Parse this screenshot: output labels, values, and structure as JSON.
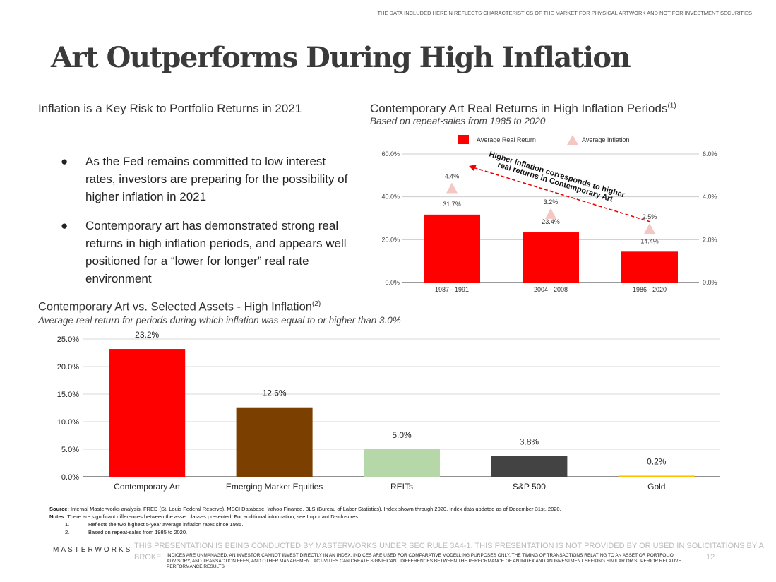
{
  "disclaimer_top": "THE DATA INCLUDED HEREIN REFLECTS CHARACTERISTICS OF THE MARKET FOR PHYSICAL ARTWORK AND NOT FOR INVESTMENT SECURITIES",
  "title": "Art Outperforms During High Inflation",
  "left": {
    "heading": "Inflation is a Key Risk to Portfolio Returns in 2021",
    "bullets": [
      "As the Fed remains committed to low interest rates, investors are preparing for the possibility of higher inflation in 2021",
      "Contemporary art has demonstrated strong real returns in high inflation periods, and appears well positioned for a “lower for longer” real rate environment"
    ]
  },
  "colors": {
    "art_red": "#ff0000",
    "emerging": "#7b3f00",
    "reits": "#b6d7a8",
    "sp500": "#434343",
    "gold": "#ffc000",
    "triangle": "#f4c7c3"
  },
  "chart_data": [
    {
      "type": "bar",
      "title": "Contemporary Art Real Returns in High Inflation Periods",
      "title_sup": "(1)",
      "subtitle": "Based on repeat-sales from 1985 to 2020",
      "categories": [
        "1987 - 1991",
        "2004 - 2008",
        "1986 - 2020"
      ],
      "series": [
        {
          "name": "Average Real Return",
          "values": [
            31.7,
            23.4,
            14.4
          ],
          "labels": [
            "31.7%",
            "23.4%",
            "14.4%"
          ],
          "axis": "left"
        },
        {
          "name": "Average Inflation",
          "type": "scatter",
          "marker": "triangle",
          "values": [
            4.4,
            3.2,
            2.5
          ],
          "labels": [
            "4.4%",
            "3.2%",
            "2.5%"
          ],
          "axis": "right"
        }
      ],
      "ylim": [
        0,
        60
      ],
      "yticks": [
        "0.0%",
        "20.0%",
        "40.0%",
        "60.0%"
      ],
      "y2lim": [
        0,
        6
      ],
      "y2ticks": [
        "0.0%",
        "2.0%",
        "4.0%",
        "6.0%"
      ],
      "legend": "top",
      "grid": true,
      "annotation": [
        "Higher inflation corresponds to higher",
        "real returns in Contemporary Art"
      ]
    },
    {
      "type": "bar",
      "title": "Contemporary Art vs. Selected Assets - High Inflation",
      "title_sup": "(2)",
      "subtitle": "Average real return for periods during which inflation was equal to or higher than 3.0%",
      "categories": [
        "Contemporary Art",
        "Emerging Market Equities",
        "REITs",
        "S&P 500",
        "Gold"
      ],
      "values": [
        23.2,
        12.6,
        5.0,
        3.8,
        0.2
      ],
      "labels": [
        "23.2%",
        "12.6%",
        "5.0%",
        "3.8%",
        "0.2%"
      ],
      "ylim": [
        0,
        25
      ],
      "yticks": [
        "0.0%",
        "5.0%",
        "10.0%",
        "15.0%",
        "20.0%",
        "25.0%"
      ],
      "grid": true
    }
  ],
  "notes": {
    "source_label": "Source:",
    "source": " Internal Masterworks analysis. FRED (St. Louis Federal Reserve). MSCI Database. Yahoo Finance. BLS (Bureau of Labor Statistics). Index shown through 2020. Index data updated as of December 31st, 2020.",
    "notes_label": "Notes:",
    "notes": " There are significant differences between the asset classes presented. For additional information, see Important Disclosures.",
    "items": [
      {
        "n": "1.",
        "t": "Reflects the two highest 5-year average inflation rates since 1985."
      },
      {
        "n": "2.",
        "t": "Based on repeat-sales from 1985 to 2020."
      }
    ]
  },
  "footer": {
    "logo": "MASTERWORKS",
    "legal_gray": "THIS PRESENTATION  IS BEING CONDUCTED BY MASTERWORKS UNDER SEC RULE 3A4-1. THIS PRESENTATION  IS NOT PROVIDED BY OR USED IN SOLICITATIONS BY A",
    "legal_gray2": "BROKE",
    "legal_dark": "INDICES ARE UNMANAGED. AN INVESTOR CANNOT INVEST DIRECTLY IN AN INDEX. INDICES ARE USED FOR COMPARATIVE MODELLING PURPOSES ONLY. THE TIMING OF TRANSACTIONS RELATING TO AN ASSET OR PORTFOLIO, ADVISORY, AND TRANSACTION FEES, AND OTHER MANAGEMENT ACTIVITIES CAN CREATE SIGNIFICANT DIFFERENCES BETWEEN THE PERFORMANCE OF AN INDEX AND AN INVESTMENT SEEKING SIMILAR OR SUPERIOR RELATIVE PERFORMANCE RESULTS",
    "page": "12"
  }
}
